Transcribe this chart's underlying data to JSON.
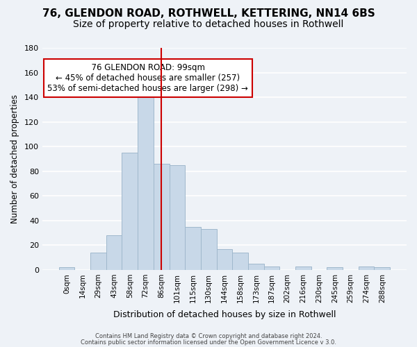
{
  "title": "76, GLENDON ROAD, ROTHWELL, KETTERING, NN14 6BS",
  "subtitle": "Size of property relative to detached houses in Rothwell",
  "xlabel": "Distribution of detached houses by size in Rothwell",
  "ylabel": "Number of detached properties",
  "footer_line1": "Contains HM Land Registry data © Crown copyright and database right 2024.",
  "footer_line2": "Contains public sector information licensed under the Open Government Licence v 3.0.",
  "bar_labels": [
    "0sqm",
    "14sqm",
    "29sqm",
    "43sqm",
    "58sqm",
    "72sqm",
    "86sqm",
    "101sqm",
    "115sqm",
    "130sqm",
    "144sqm",
    "158sqm",
    "173sqm",
    "187sqm",
    "202sqm",
    "216sqm",
    "230sqm",
    "245sqm",
    "259sqm",
    "274sqm",
    "288sqm"
  ],
  "bar_values": [
    2,
    0,
    14,
    28,
    95,
    148,
    86,
    85,
    35,
    33,
    17,
    14,
    5,
    3,
    0,
    3,
    0,
    2,
    0,
    3,
    2
  ],
  "bar_color": "#c8d8e8",
  "bar_edge_color": "#a0b8cc",
  "vline_color": "#cc0000",
  "vline_position": 6.0,
  "ylim": [
    0,
    180
  ],
  "annotation_title": "76 GLENDON ROAD: 99sqm",
  "annotation_line1": "← 45% of detached houses are smaller (257)",
  "annotation_line2": "53% of semi-detached houses are larger (298) →",
  "annotation_box_color": "#ffffff",
  "annotation_box_edgecolor": "#cc0000",
  "background_color": "#eef2f7",
  "gridcolor": "#ffffff",
  "title_fontsize": 11,
  "subtitle_fontsize": 10
}
